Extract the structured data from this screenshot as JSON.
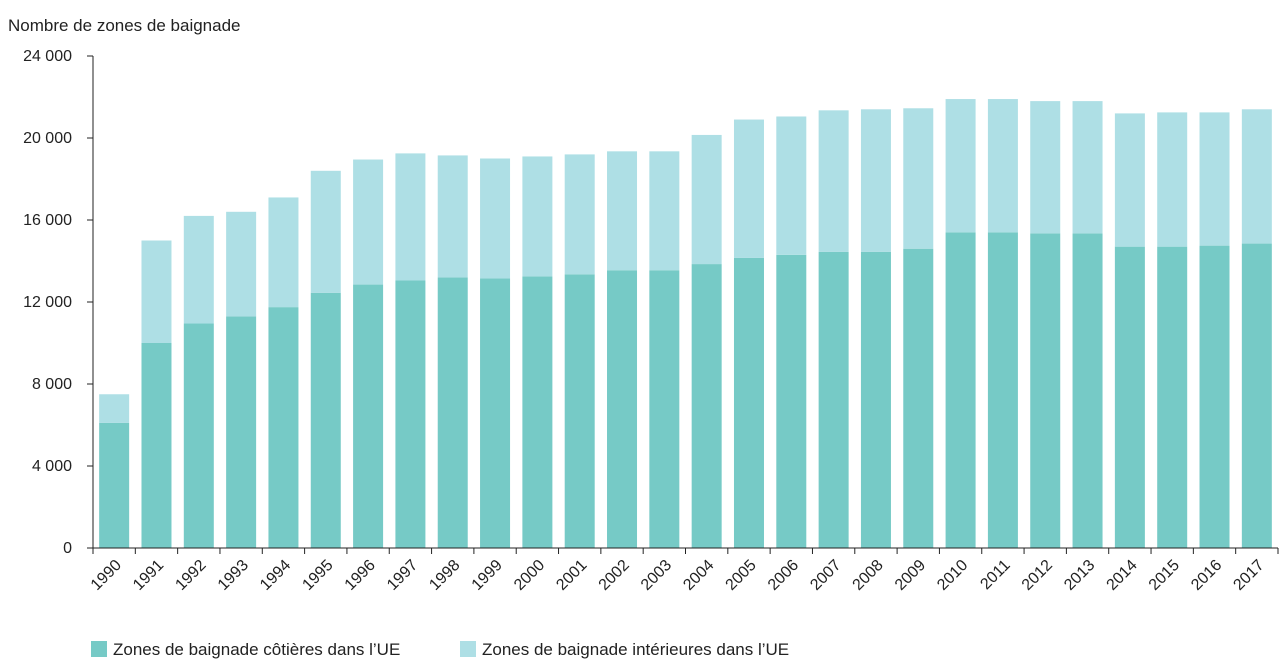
{
  "chart_data": {
    "type": "bar",
    "stacked": true,
    "title": "",
    "xlabel": "",
    "ylabel": "Nombre de zones de baignade",
    "ylim": [
      0,
      24000
    ],
    "yticks": [
      0,
      4000,
      8000,
      12000,
      16000,
      20000,
      24000
    ],
    "ytick_labels": [
      "0",
      "4 000",
      "8 000",
      "12 000",
      "16 000",
      "20 000",
      "24 000"
    ],
    "grid": false,
    "legend_position": "bottom-left",
    "categories": [
      "1990",
      "1991",
      "1992",
      "1993",
      "1994",
      "1995",
      "1996",
      "1997",
      "1998",
      "1999",
      "2000",
      "2001",
      "2002",
      "2003",
      "2004",
      "2005",
      "2006",
      "2007",
      "2008",
      "2009",
      "2010",
      "2011",
      "2012",
      "2013",
      "2014",
      "2015",
      "2016",
      "2017"
    ],
    "series": [
      {
        "name": "Zones de baignade côtières dans l’UE",
        "color": "#76cac6",
        "values": [
          6100,
          10000,
          10950,
          11300,
          11750,
          12450,
          12850,
          13050,
          13200,
          13150,
          13250,
          13350,
          13550,
          13550,
          13850,
          14150,
          14300,
          14450,
          14450,
          14600,
          15400,
          15400,
          15350,
          15350,
          14700,
          14700,
          14750,
          14850
        ]
      },
      {
        "name": "Zones de baignade intérieures dans l’UE",
        "color": "#aedfe5",
        "values": [
          1400,
          5000,
          5250,
          5100,
          5350,
          5950,
          6100,
          6200,
          5950,
          5850,
          5850,
          5850,
          5800,
          5800,
          6300,
          6750,
          6750,
          6900,
          6950,
          6850,
          6500,
          6500,
          6450,
          6450,
          6500,
          6550,
          6500,
          6550
        ]
      }
    ]
  }
}
